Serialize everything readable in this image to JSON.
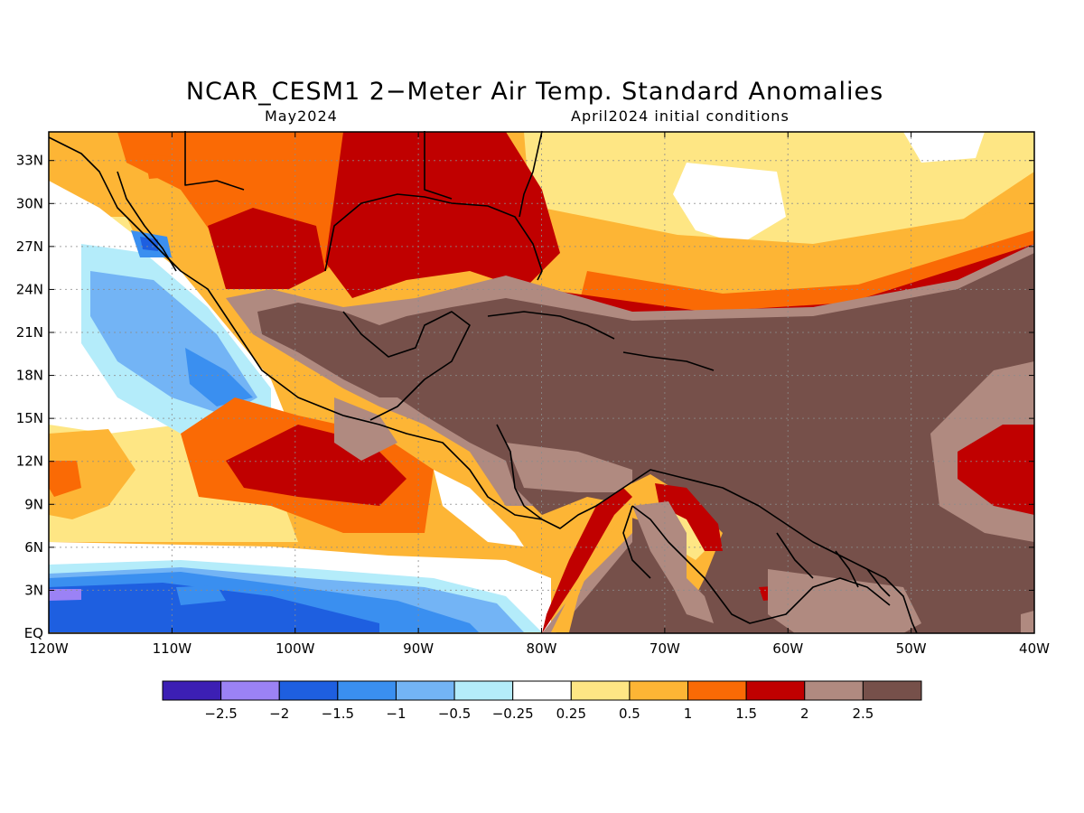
{
  "title": "NCAR_CESM1 2−Meter Air Temp. Standard Anomalies",
  "subtitle_left": "May2024",
  "subtitle_right": "April2024 initial conditions",
  "map": {
    "lon_range": [
      -120,
      -40
    ],
    "lat_range": [
      0,
      35
    ],
    "lon_ticks": [
      "120W",
      "110W",
      "100W",
      "90W",
      "80W",
      "70W",
      "60W",
      "50W",
      "40W"
    ],
    "lat_ticks": [
      "EQ",
      "3N",
      "6N",
      "9N",
      "12N",
      "15N",
      "18N",
      "21N",
      "24N",
      "27N",
      "30N",
      "33N"
    ],
    "grid": "dotted"
  },
  "colorbar": {
    "labels": [
      "−2.5",
      "−2",
      "−1.5",
      "−1",
      "−0.5",
      "−0.25",
      "0.25",
      "0.5",
      "1",
      "1.5",
      "2",
      "2.5"
    ],
    "colors": [
      "#3c1fb4",
      "#9b82f5",
      "#1e5fe0",
      "#3a8ff0",
      "#73b4f5",
      "#b4ecfa",
      "#ffffff",
      "#fee684",
      "#fdb535",
      "#fa6a05",
      "#c00000",
      "#b08a80",
      "#76504a"
    ]
  }
}
